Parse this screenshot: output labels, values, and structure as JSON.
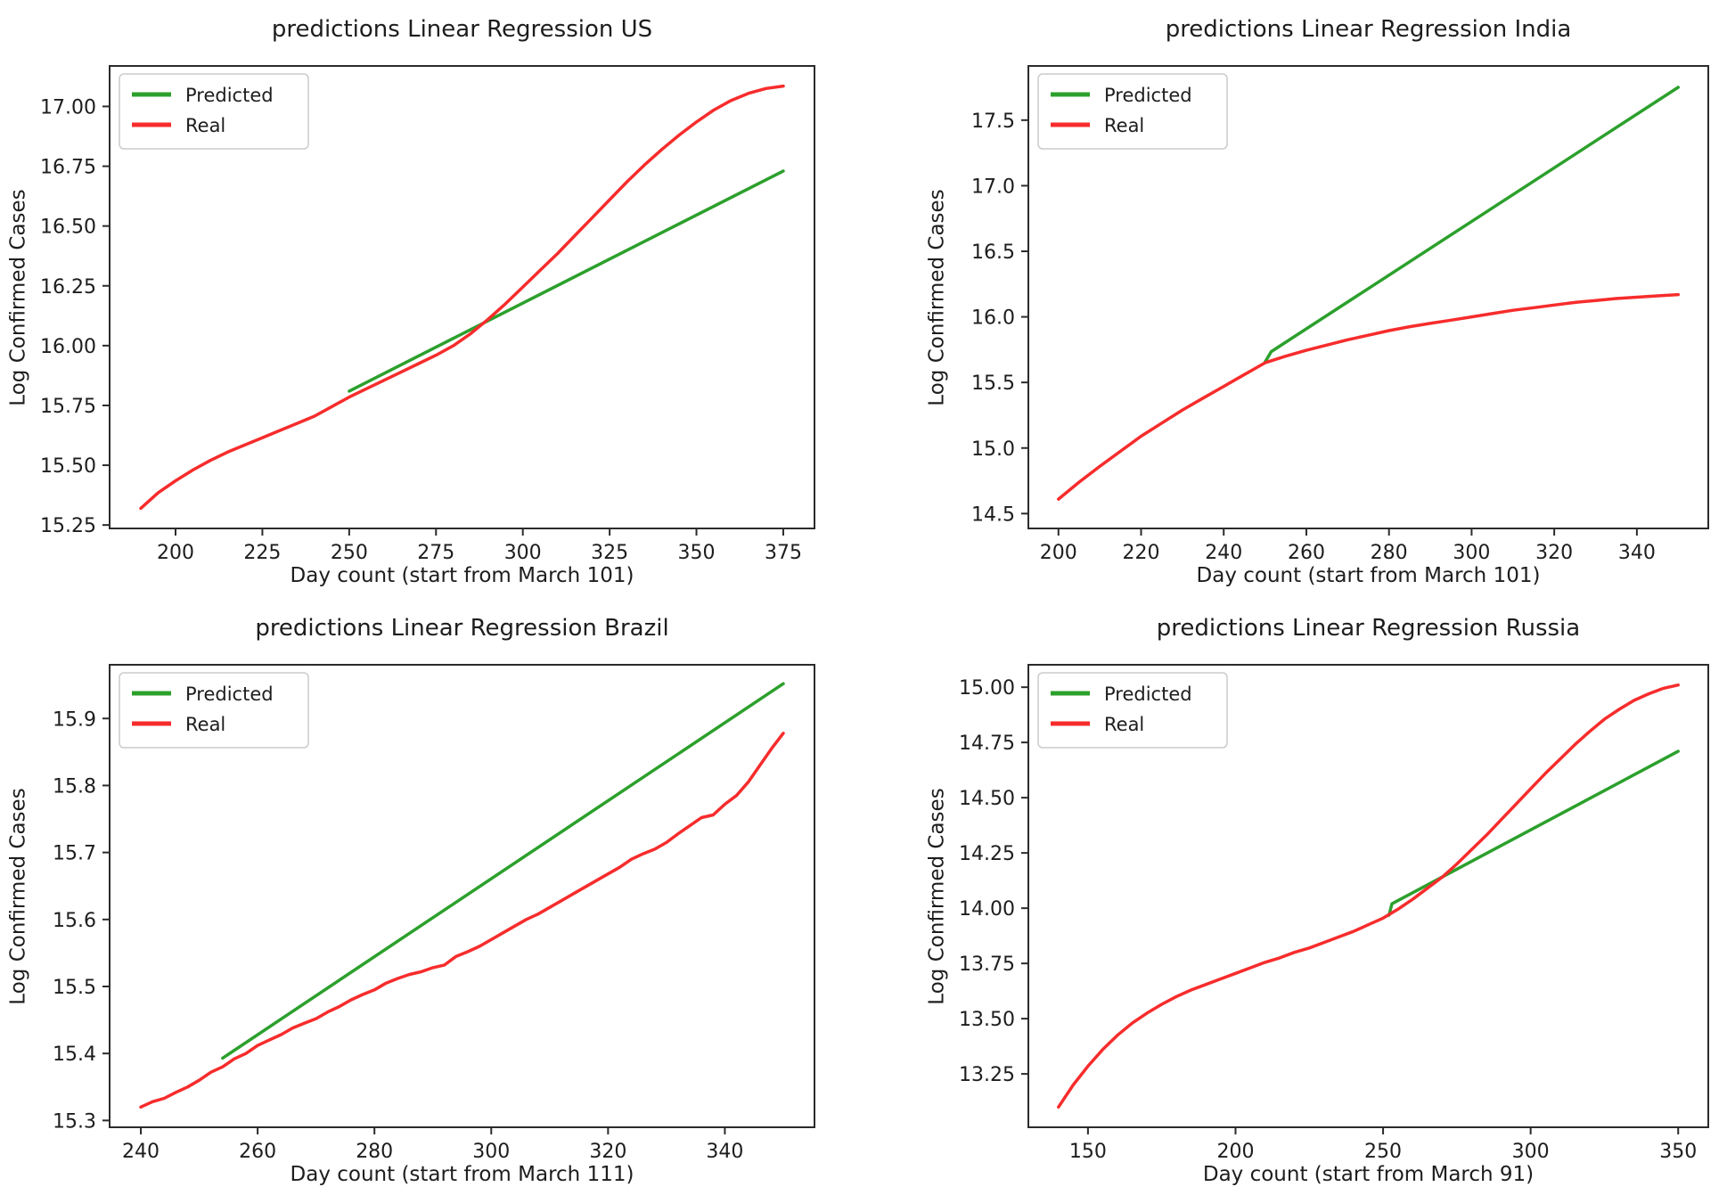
{
  "figure": {
    "background": "#ffffff",
    "axis_color": "#2b2b2b",
    "text_color": "#1d1d1d",
    "legend": {
      "border_color": "#cccccc",
      "fill": "#ffffff"
    }
  },
  "chart_data": [
    {
      "type": "line",
      "title": "predictions Linear Regression US",
      "xlabel": "Day count (start from March 101)",
      "ylabel": "Log Confirmed Cases",
      "xlim": [
        180.75,
        384.25
      ],
      "ylim": [
        15.232,
        17.173
      ],
      "xticks": [
        200,
        225,
        250,
        275,
        300,
        325,
        350,
        375
      ],
      "xtick_labels": [
        "200",
        "225",
        "250",
        "275",
        "300",
        "325",
        "350",
        "375"
      ],
      "yticks": [
        15.25,
        15.5,
        15.75,
        16.0,
        16.25,
        16.5,
        16.75,
        17.0
      ],
      "ytick_labels": [
        "15.25",
        "15.50",
        "15.75",
        "16.00",
        "16.25",
        "16.50",
        "16.75",
        "17.00"
      ],
      "grid": false,
      "legend_position": "upper left",
      "series": [
        {
          "name": "Predicted",
          "color": "#2ca02c",
          "points": [
            [
              250,
              15.81
            ],
            [
              375,
              16.73
            ]
          ]
        },
        {
          "name": "Real",
          "color": "#f72c2c",
          "points": [
            [
              190,
              15.32
            ],
            [
              195,
              15.385
            ],
            [
              200,
              15.435
            ],
            [
              205,
              15.48
            ],
            [
              210,
              15.52
            ],
            [
              215,
              15.555
            ],
            [
              220,
              15.585
            ],
            [
              225,
              15.615
            ],
            [
              230,
              15.645
            ],
            [
              235,
              15.675
            ],
            [
              240,
              15.705
            ],
            [
              245,
              15.745
            ],
            [
              250,
              15.785
            ],
            [
              255,
              15.82
            ],
            [
              260,
              15.855
            ],
            [
              265,
              15.89
            ],
            [
              270,
              15.925
            ],
            [
              275,
              15.96
            ],
            [
              280,
              16.0
            ],
            [
              285,
              16.05
            ],
            [
              290,
              16.11
            ],
            [
              295,
              16.175
            ],
            [
              300,
              16.245
            ],
            [
              305,
              16.315
            ],
            [
              310,
              16.385
            ],
            [
              315,
              16.46
            ],
            [
              320,
              16.535
            ],
            [
              325,
              16.61
            ],
            [
              330,
              16.685
            ],
            [
              335,
              16.755
            ],
            [
              340,
              16.82
            ],
            [
              345,
              16.88
            ],
            [
              350,
              16.935
            ],
            [
              355,
              16.985
            ],
            [
              360,
              17.025
            ],
            [
              365,
              17.055
            ],
            [
              370,
              17.075
            ],
            [
              375,
              17.085
            ]
          ]
        }
      ]
    },
    {
      "type": "line",
      "title": "predictions Linear Regression India",
      "xlabel": "Day count (start from March 101)",
      "ylabel": "Log Confirmed Cases",
      "xlim": [
        192.5,
        357.5
      ],
      "ylim": [
        14.38,
        17.92
      ],
      "xticks": [
        200,
        220,
        240,
        260,
        280,
        300,
        320,
        340
      ],
      "xtick_labels": [
        "200",
        "220",
        "240",
        "260",
        "280",
        "300",
        "320",
        "340"
      ],
      "yticks": [
        14.5,
        15.0,
        15.5,
        16.0,
        16.5,
        17.0,
        17.5
      ],
      "ytick_labels": [
        "14.5",
        "15.0",
        "15.5",
        "16.0",
        "16.5",
        "17.0",
        "17.5"
      ],
      "grid": false,
      "legend_position": "upper left",
      "series": [
        {
          "name": "Predicted",
          "color": "#2ca02c",
          "points": [
            [
              250,
              15.655
            ],
            [
              251.5,
              15.735
            ],
            [
              350,
              17.75
            ]
          ]
        },
        {
          "name": "Real",
          "color": "#f72c2c",
          "points": [
            [
              200,
              14.61
            ],
            [
              205,
              14.74
            ],
            [
              210,
              14.86
            ],
            [
              215,
              14.975
            ],
            [
              220,
              15.09
            ],
            [
              225,
              15.19
            ],
            [
              230,
              15.29
            ],
            [
              235,
              15.38
            ],
            [
              240,
              15.47
            ],
            [
              245,
              15.56
            ],
            [
              250,
              15.65
            ],
            [
              255,
              15.7
            ],
            [
              260,
              15.745
            ],
            [
              265,
              15.785
            ],
            [
              270,
              15.825
            ],
            [
              275,
              15.86
            ],
            [
              280,
              15.895
            ],
            [
              285,
              15.925
            ],
            [
              290,
              15.95
            ],
            [
              295,
              15.975
            ],
            [
              300,
              16.0
            ],
            [
              305,
              16.025
            ],
            [
              310,
              16.05
            ],
            [
              315,
              16.07
            ],
            [
              320,
              16.09
            ],
            [
              325,
              16.11
            ],
            [
              330,
              16.125
            ],
            [
              335,
              16.14
            ],
            [
              340,
              16.15
            ],
            [
              345,
              16.16
            ],
            [
              350,
              16.17
            ]
          ]
        }
      ]
    },
    {
      "type": "line",
      "title": "predictions Linear Regression Brazil",
      "xlabel": "Day count (start from March 111)",
      "ylabel": "Log Confirmed Cases",
      "xlim": [
        234.5,
        355.5
      ],
      "ylim": [
        15.2885,
        15.9815
      ],
      "xticks": [
        240,
        260,
        280,
        300,
        320,
        340
      ],
      "xtick_labels": [
        "240",
        "260",
        "280",
        "300",
        "320",
        "340"
      ],
      "yticks": [
        15.3,
        15.4,
        15.5,
        15.6,
        15.7,
        15.8,
        15.9
      ],
      "ytick_labels": [
        "15.3",
        "15.4",
        "15.5",
        "15.6",
        "15.7",
        "15.8",
        "15.9"
      ],
      "grid": false,
      "legend_position": "upper left",
      "series": [
        {
          "name": "Predicted",
          "color": "#2ca02c",
          "points": [
            [
              254,
              15.393
            ],
            [
              350,
              15.952
            ]
          ]
        },
        {
          "name": "Real",
          "color": "#f72c2c",
          "points": [
            [
              240,
              15.32
            ],
            [
              242,
              15.328
            ],
            [
              244,
              15.333
            ],
            [
              246,
              15.342
            ],
            [
              248,
              15.35
            ],
            [
              250,
              15.36
            ],
            [
              252,
              15.372
            ],
            [
              254,
              15.38
            ],
            [
              256,
              15.392
            ],
            [
              258,
              15.4
            ],
            [
              260,
              15.412
            ],
            [
              262,
              15.42
            ],
            [
              264,
              15.428
            ],
            [
              266,
              15.438
            ],
            [
              268,
              15.445
            ],
            [
              270,
              15.452
            ],
            [
              272,
              15.462
            ],
            [
              274,
              15.47
            ],
            [
              276,
              15.48
            ],
            [
              278,
              15.488
            ],
            [
              280,
              15.495
            ],
            [
              282,
              15.505
            ],
            [
              284,
              15.512
            ],
            [
              286,
              15.518
            ],
            [
              288,
              15.522
            ],
            [
              290,
              15.528
            ],
            [
              292,
              15.532
            ],
            [
              294,
              15.545
            ],
            [
              296,
              15.552
            ],
            [
              298,
              15.56
            ],
            [
              300,
              15.57
            ],
            [
              302,
              15.58
            ],
            [
              304,
              15.59
            ],
            [
              306,
              15.6
            ],
            [
              308,
              15.608
            ],
            [
              310,
              15.618
            ],
            [
              312,
              15.628
            ],
            [
              314,
              15.638
            ],
            [
              316,
              15.648
            ],
            [
              318,
              15.658
            ],
            [
              320,
              15.668
            ],
            [
              322,
              15.678
            ],
            [
              324,
              15.69
            ],
            [
              326,
              15.698
            ],
            [
              328,
              15.705
            ],
            [
              330,
              15.715
            ],
            [
              332,
              15.728
            ],
            [
              334,
              15.74
            ],
            [
              336,
              15.752
            ],
            [
              338,
              15.756
            ],
            [
              340,
              15.772
            ],
            [
              342,
              15.785
            ],
            [
              344,
              15.805
            ],
            [
              346,
              15.83
            ],
            [
              348,
              15.855
            ],
            [
              350,
              15.878
            ]
          ]
        }
      ]
    },
    {
      "type": "line",
      "title": "predictions Linear Regression Russia",
      "xlabel": "Day count (start from March 91)",
      "ylabel": "Log Confirmed Cases",
      "xlim": [
        129.5,
        360.5
      ],
      "ylim": [
        13.0045,
        15.1055
      ],
      "xticks": [
        150,
        200,
        250,
        300,
        350
      ],
      "xtick_labels": [
        "150",
        "200",
        "250",
        "300",
        "350"
      ],
      "yticks": [
        13.25,
        13.5,
        13.75,
        14.0,
        14.25,
        14.5,
        14.75,
        15.0
      ],
      "ytick_labels": [
        "13.25",
        "13.50",
        "13.75",
        "14.00",
        "14.25",
        "14.50",
        "14.75",
        "15.00"
      ],
      "grid": false,
      "legend_position": "upper left",
      "series": [
        {
          "name": "Predicted",
          "color": "#2ca02c",
          "points": [
            [
              252,
              13.968
            ],
            [
              253,
              14.02
            ],
            [
              350,
              14.71
            ]
          ]
        },
        {
          "name": "Real",
          "color": "#f72c2c",
          "points": [
            [
              140,
              13.1
            ],
            [
              145,
              13.2
            ],
            [
              150,
              13.285
            ],
            [
              155,
              13.36
            ],
            [
              160,
              13.425
            ],
            [
              165,
              13.48
            ],
            [
              170,
              13.525
            ],
            [
              175,
              13.565
            ],
            [
              180,
              13.6
            ],
            [
              185,
              13.63
            ],
            [
              190,
              13.655
            ],
            [
              195,
              13.68
            ],
            [
              200,
              13.705
            ],
            [
              205,
              13.73
            ],
            [
              210,
              13.755
            ],
            [
              215,
              13.775
            ],
            [
              220,
              13.8
            ],
            [
              225,
              13.82
            ],
            [
              230,
              13.845
            ],
            [
              235,
              13.87
            ],
            [
              240,
              13.895
            ],
            [
              245,
              13.925
            ],
            [
              250,
              13.955
            ],
            [
              255,
              13.995
            ],
            [
              260,
              14.04
            ],
            [
              265,
              14.09
            ],
            [
              270,
              14.14
            ],
            [
              275,
              14.2
            ],
            [
              280,
              14.265
            ],
            [
              285,
              14.33
            ],
            [
              290,
              14.4
            ],
            [
              295,
              14.47
            ],
            [
              300,
              14.54
            ],
            [
              305,
              14.61
            ],
            [
              310,
              14.675
            ],
            [
              315,
              14.74
            ],
            [
              320,
              14.8
            ],
            [
              325,
              14.855
            ],
            [
              330,
              14.9
            ],
            [
              335,
              14.94
            ],
            [
              340,
              14.97
            ],
            [
              345,
              14.995
            ],
            [
              350,
              15.01
            ]
          ]
        }
      ]
    }
  ]
}
